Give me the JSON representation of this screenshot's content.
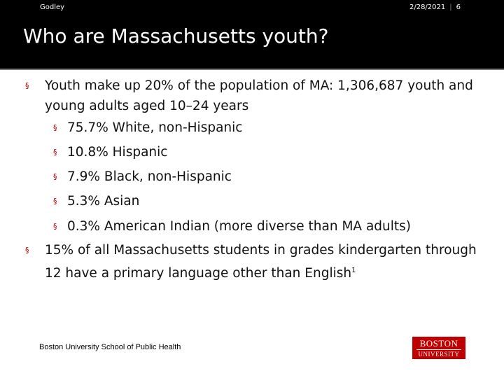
{
  "header": {
    "author": "Godley",
    "date": "2/28/2021",
    "slide_number": "6"
  },
  "title": "Who are Massachusetts youth?",
  "bullets": {
    "b1": "Youth make up 20% of the population of MA:  1,306,687 youth and young adults aged 10–24 years",
    "sub": [
      "75.7% White, non-Hispanic",
      "10.8% Hispanic",
      "7.9% Black, non-Hispanic",
      "5.3% Asian",
      "0.3% American Indian  (more diverse than MA adults)"
    ],
    "b2": "15%  of all Massachusetts students in grades kindergarten through 12 have a primary language other than English",
    "b2_footnote": "1",
    "marker": "§"
  },
  "footer": {
    "text": "Boston University School of Public Health"
  },
  "logo": {
    "line1": "BOSTON",
    "line2": "UNIVERSITY",
    "color": "#c00000"
  }
}
